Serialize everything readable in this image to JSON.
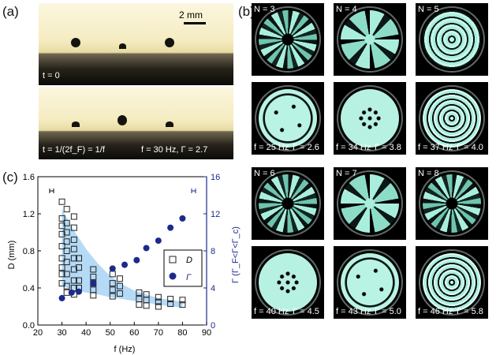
{
  "panel_a": {
    "label": "(a)",
    "scale_bar": "2 mm",
    "top_time": "t = 0",
    "bottom_time": "t = 1/(2f_F) = 1/f",
    "bottom_params": "f = 30 Hz, Γ = 2.7"
  },
  "panel_b": {
    "label": "(b)",
    "cells": [
      {
        "n_label": "N = 3",
        "f_label": "f = 25 Hz",
        "g_label": "Γ = 2.6"
      },
      {
        "n_label": "N = 4",
        "f_label": "f = 34 Hz",
        "g_label": "Γ = 3.8"
      },
      {
        "n_label": "N = 5",
        "f_label": "f = 37 Hz",
        "g_label": "Γ = 4.0"
      },
      {
        "n_label": "N = 6",
        "f_label": "f = 40 Hz",
        "g_label": "Γ = 4.5"
      },
      {
        "n_label": "N = 7",
        "f_label": "f = 43 Hz",
        "g_label": "Γ = 5.0"
      },
      {
        "n_label": "N = 8",
        "f_label": "f = 46 Hz",
        "g_label": "Γ = 5.8"
      }
    ]
  },
  "panel_c": {
    "label": "(c)",
    "legend_D": "D",
    "legend_G": "Γ"
  },
  "colors": {
    "pattern": "#a9eedd",
    "band": "#a7d3f4",
    "gamma_marker": "#1c2a8c",
    "right_axis": "#1c2a8c"
  },
  "chart_data": {
    "type": "scatter",
    "xlabel": "f (Hz)",
    "ylabel_left": "D (mm)",
    "ylabel_right": "Γ (Γ_F<Γ<Γ_c)",
    "xlim": [
      20,
      90
    ],
    "ylim_left": [
      0,
      1.6
    ],
    "ylim_right": [
      0,
      16
    ],
    "x_ticks": [
      "20",
      "30",
      "40",
      "50",
      "60",
      "70",
      "80",
      "90"
    ],
    "y_left_ticks": [
      "0.0",
      "0.4",
      "0.8",
      "1.2",
      "1.6"
    ],
    "y_right_ticks": [
      "0",
      "4",
      "8",
      "12",
      "16"
    ],
    "series": [
      {
        "name": "D",
        "axis": "left",
        "marker": "open-square",
        "points": [
          [
            30,
            1.33
          ],
          [
            30,
            1.15
          ],
          [
            30,
            1.07
          ],
          [
            30,
            0.98
          ],
          [
            30,
            0.85
          ],
          [
            30,
            0.72
          ],
          [
            30,
            0.62
          ],
          [
            30,
            0.55
          ],
          [
            30,
            0.45
          ],
          [
            32,
            1.25
          ],
          [
            32,
            1.1
          ],
          [
            32,
            1.0
          ],
          [
            32,
            0.9
          ],
          [
            32,
            0.8
          ],
          [
            32,
            0.68
          ],
          [
            32,
            0.55
          ],
          [
            32,
            0.42
          ],
          [
            32,
            0.35
          ],
          [
            35,
            1.17
          ],
          [
            35,
            1.05
          ],
          [
            35,
            0.92
          ],
          [
            35,
            0.82
          ],
          [
            35,
            0.72
          ],
          [
            35,
            0.6
          ],
          [
            35,
            0.48
          ],
          [
            35,
            0.4
          ],
          [
            35,
            0.33
          ],
          [
            37,
            0.72
          ],
          [
            37,
            0.62
          ],
          [
            37,
            0.48
          ],
          [
            37,
            0.4
          ],
          [
            43,
            0.6
          ],
          [
            43,
            0.52
          ],
          [
            43,
            0.45
          ],
          [
            43,
            0.38
          ],
          [
            43,
            0.32
          ],
          [
            51,
            0.55
          ],
          [
            51,
            0.45
          ],
          [
            51,
            0.38
          ],
          [
            51,
            0.31
          ],
          [
            54,
            0.5
          ],
          [
            54,
            0.42
          ],
          [
            54,
            0.34
          ],
          [
            62,
            0.35
          ],
          [
            62,
            0.28
          ],
          [
            62,
            0.22
          ],
          [
            65,
            0.33
          ],
          [
            65,
            0.27
          ],
          [
            65,
            0.21
          ],
          [
            70,
            0.3
          ],
          [
            70,
            0.25
          ],
          [
            70,
            0.2
          ],
          [
            75,
            0.28
          ],
          [
            75,
            0.23
          ],
          [
            80,
            0.27
          ],
          [
            80,
            0.22
          ]
        ]
      },
      {
        "name": "Γ",
        "axis": "right",
        "marker": "filled-circle",
        "points": [
          [
            30,
            2.9
          ],
          [
            34,
            3.5
          ],
          [
            37,
            3.6
          ],
          [
            43,
            4.5
          ],
          [
            51,
            6.1
          ],
          [
            56,
            6.5
          ],
          [
            61,
            7.0
          ],
          [
            65,
            8.3
          ],
          [
            70,
            9.1
          ],
          [
            75,
            10.5
          ],
          [
            80,
            11.5
          ]
        ]
      }
    ],
    "band": {
      "name": "D range",
      "x": [
        30,
        35,
        40,
        45,
        50,
        55,
        60,
        65,
        70,
        75,
        80
      ],
      "lower": [
        0.42,
        0.38,
        0.35,
        0.33,
        0.3,
        0.28,
        0.26,
        0.24,
        0.22,
        0.2,
        0.19
      ],
      "upper": [
        1.25,
        1.02,
        0.82,
        0.66,
        0.53,
        0.44,
        0.37,
        0.33,
        0.29,
        0.27,
        0.25
      ]
    },
    "legend_position": "center-right"
  }
}
